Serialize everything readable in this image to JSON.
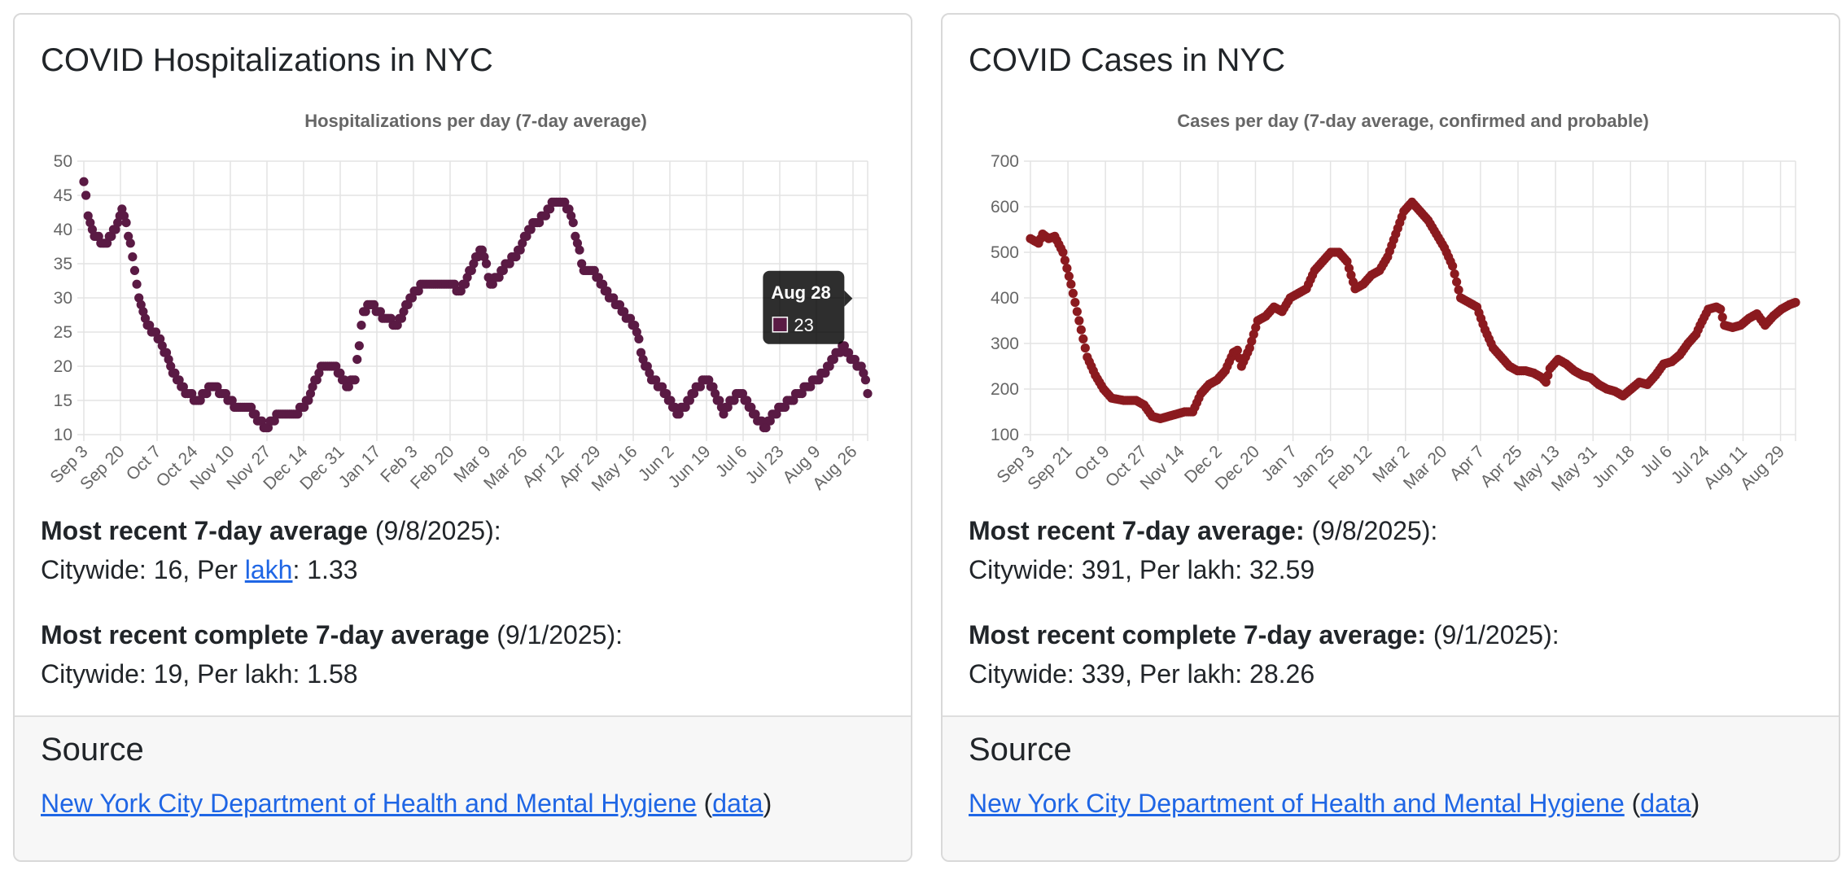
{
  "cards": [
    {
      "title": "COVID Hospitalizations in NYC",
      "stats": {
        "recent_label": "Most recent 7-day average",
        "recent_date": " (9/8/2025):",
        "recent_citywide_prefix": "Citywide: 16, Per ",
        "recent_per_link": "lakh",
        "recent_per_value": ": 1.33",
        "complete_label": "Most recent complete 7-day average",
        "complete_date": " (9/1/2025):",
        "complete_values": "Citywide: 19, Per lakh: 1.58"
      },
      "footer": {
        "title": "Source",
        "link": "New York City Department of Health and Mental Hygiene",
        "paren_open": " (",
        "data_link": "data",
        "paren_close": ")"
      }
    },
    {
      "title": "COVID Cases in NYC",
      "stats": {
        "recent_label": "Most recent 7-day average:",
        "recent_date": " (9/8/2025):",
        "recent_citywide": "Citywide: 391, Per lakh: 32.59",
        "complete_label": "Most recent complete 7-day average:",
        "complete_date": " (9/1/2025):",
        "complete_values": "Citywide: 339, Per lakh: 28.26"
      },
      "footer": {
        "title": "Source",
        "link": "New York City Department of Health and Mental Hygiene",
        "paren_open": " (",
        "data_link": "data",
        "paren_close": ")"
      }
    }
  ],
  "chart_data": [
    {
      "type": "scatter",
      "title": "Hospitalizations per day (7-day average)",
      "color": "#5a1a44",
      "xlabel": "",
      "ylabel": "",
      "ylim": [
        10,
        50
      ],
      "yticks": [
        10,
        15,
        20,
        25,
        30,
        35,
        40,
        45,
        50
      ],
      "xtick_labels": [
        "Sep 3",
        "Sep 20",
        "Oct 7",
        "Oct 24",
        "Nov 10",
        "Nov 27",
        "Dec 14",
        "Dec 31",
        "Jan 17",
        "Feb 3",
        "Feb 20",
        "Mar 9",
        "Mar 26",
        "Apr 12",
        "Apr 29",
        "May 16",
        "Jun 2",
        "Jun 19",
        "Jul 6",
        "Jul 23",
        "Aug 9",
        "Aug 26"
      ],
      "x_start": "Sep 3",
      "num_days": 371,
      "anchors": [
        [
          0,
          47
        ],
        [
          2,
          42
        ],
        [
          5,
          39
        ],
        [
          10,
          38
        ],
        [
          15,
          40
        ],
        [
          18,
          43
        ],
        [
          22,
          38
        ],
        [
          26,
          30
        ],
        [
          30,
          26
        ],
        [
          36,
          24
        ],
        [
          42,
          19
        ],
        [
          48,
          16
        ],
        [
          54,
          15
        ],
        [
          60,
          17
        ],
        [
          66,
          16
        ],
        [
          72,
          14
        ],
        [
          78,
          14
        ],
        [
          82,
          12
        ],
        [
          86,
          11
        ],
        [
          92,
          13
        ],
        [
          100,
          13
        ],
        [
          106,
          15
        ],
        [
          112,
          20
        ],
        [
          118,
          20
        ],
        [
          124,
          17
        ],
        [
          128,
          18
        ],
        [
          132,
          28
        ],
        [
          136,
          29
        ],
        [
          142,
          27
        ],
        [
          148,
          26
        ],
        [
          154,
          30
        ],
        [
          160,
          32
        ],
        [
          166,
          32
        ],
        [
          172,
          32
        ],
        [
          178,
          31
        ],
        [
          184,
          35
        ],
        [
          188,
          37
        ],
        [
          192,
          32
        ],
        [
          196,
          33
        ],
        [
          200,
          35
        ],
        [
          206,
          37
        ],
        [
          210,
          40
        ],
        [
          214,
          41
        ],
        [
          218,
          42
        ],
        [
          222,
          44
        ],
        [
          226,
          44
        ],
        [
          230,
          42
        ],
        [
          232,
          39
        ],
        [
          236,
          34
        ],
        [
          240,
          34
        ],
        [
          244,
          32
        ],
        [
          248,
          30
        ],
        [
          252,
          29
        ],
        [
          256,
          27
        ],
        [
          260,
          26
        ],
        [
          264,
          21
        ],
        [
          268,
          18
        ],
        [
          272,
          17
        ],
        [
          276,
          15
        ],
        [
          280,
          13
        ],
        [
          284,
          14
        ],
        [
          290,
          17
        ],
        [
          294,
          18
        ],
        [
          298,
          16
        ],
        [
          302,
          13
        ],
        [
          306,
          15
        ],
        [
          310,
          16
        ],
        [
          314,
          14
        ],
        [
          318,
          12
        ],
        [
          322,
          11
        ],
        [
          326,
          13
        ],
        [
          330,
          14
        ],
        [
          334,
          15
        ],
        [
          338,
          16
        ],
        [
          342,
          17
        ],
        [
          346,
          18
        ],
        [
          350,
          19
        ],
        [
          352,
          20
        ],
        [
          356,
          22
        ],
        [
          359,
          23
        ],
        [
          362,
          21
        ],
        [
          366,
          20
        ],
        [
          368,
          19
        ],
        [
          370,
          16
        ]
      ],
      "tooltip": {
        "label": "Aug 28",
        "value": "23",
        "day": 359
      }
    },
    {
      "type": "scatter",
      "title": "Cases per day (7-day average, confirmed and probable)",
      "color": "#8b1a1f",
      "xlabel": "",
      "ylabel": "",
      "ylim": [
        100,
        700
      ],
      "yticks": [
        100,
        200,
        300,
        400,
        500,
        600,
        700
      ],
      "xtick_labels": [
        "Sep 3",
        "Sep 21",
        "Oct 9",
        "Oct 27",
        "Nov 14",
        "Dec 2",
        "Dec 20",
        "Jan 7",
        "Jan 25",
        "Feb 12",
        "Mar 2",
        "Mar 20",
        "Apr 7",
        "Apr 25",
        "May 13",
        "May 31",
        "Jun 18",
        "Jul 6",
        "Jul 24",
        "Aug 11",
        "Aug 29"
      ],
      "x_start": "Sep 3",
      "num_days": 378,
      "anchors": [
        [
          0,
          530
        ],
        [
          4,
          520
        ],
        [
          6,
          540
        ],
        [
          9,
          530
        ],
        [
          12,
          535
        ],
        [
          16,
          500
        ],
        [
          20,
          430
        ],
        [
          24,
          350
        ],
        [
          28,
          270
        ],
        [
          32,
          230
        ],
        [
          36,
          200
        ],
        [
          40,
          180
        ],
        [
          46,
          175
        ],
        [
          52,
          175
        ],
        [
          56,
          165
        ],
        [
          60,
          140
        ],
        [
          64,
          135
        ],
        [
          68,
          140
        ],
        [
          72,
          145
        ],
        [
          76,
          150
        ],
        [
          80,
          150
        ],
        [
          84,
          190
        ],
        [
          88,
          210
        ],
        [
          92,
          220
        ],
        [
          96,
          240
        ],
        [
          100,
          280
        ],
        [
          102,
          285
        ],
        [
          104,
          250
        ],
        [
          108,
          290
        ],
        [
          112,
          350
        ],
        [
          116,
          360
        ],
        [
          120,
          380
        ],
        [
          124,
          370
        ],
        [
          128,
          400
        ],
        [
          132,
          410
        ],
        [
          136,
          420
        ],
        [
          140,
          460
        ],
        [
          144,
          480
        ],
        [
          148,
          500
        ],
        [
          152,
          500
        ],
        [
          156,
          480
        ],
        [
          160,
          420
        ],
        [
          164,
          430
        ],
        [
          168,
          450
        ],
        [
          172,
          460
        ],
        [
          176,
          490
        ],
        [
          180,
          540
        ],
        [
          184,
          590
        ],
        [
          188,
          610
        ],
        [
          192,
          590
        ],
        [
          196,
          570
        ],
        [
          200,
          540
        ],
        [
          204,
          510
        ],
        [
          208,
          470
        ],
        [
          212,
          400
        ],
        [
          216,
          390
        ],
        [
          220,
          380
        ],
        [
          224,
          330
        ],
        [
          228,
          290
        ],
        [
          232,
          270
        ],
        [
          236,
          250
        ],
        [
          240,
          240
        ],
        [
          244,
          240
        ],
        [
          248,
          235
        ],
        [
          252,
          225
        ],
        [
          254,
          215
        ],
        [
          256,
          245
        ],
        [
          260,
          265
        ],
        [
          264,
          255
        ],
        [
          268,
          240
        ],
        [
          272,
          230
        ],
        [
          276,
          225
        ],
        [
          280,
          210
        ],
        [
          284,
          200
        ],
        [
          288,
          195
        ],
        [
          292,
          185
        ],
        [
          296,
          200
        ],
        [
          300,
          215
        ],
        [
          304,
          210
        ],
        [
          308,
          230
        ],
        [
          312,
          255
        ],
        [
          316,
          260
        ],
        [
          320,
          275
        ],
        [
          324,
          300
        ],
        [
          328,
          320
        ],
        [
          330,
          340
        ],
        [
          334,
          375
        ],
        [
          338,
          380
        ],
        [
          340,
          375
        ],
        [
          342,
          340
        ],
        [
          346,
          335
        ],
        [
          350,
          340
        ],
        [
          354,
          355
        ],
        [
          358,
          365
        ],
        [
          362,
          340
        ],
        [
          366,
          360
        ],
        [
          370,
          375
        ],
        [
          374,
          385
        ],
        [
          377,
          390
        ]
      ]
    }
  ]
}
